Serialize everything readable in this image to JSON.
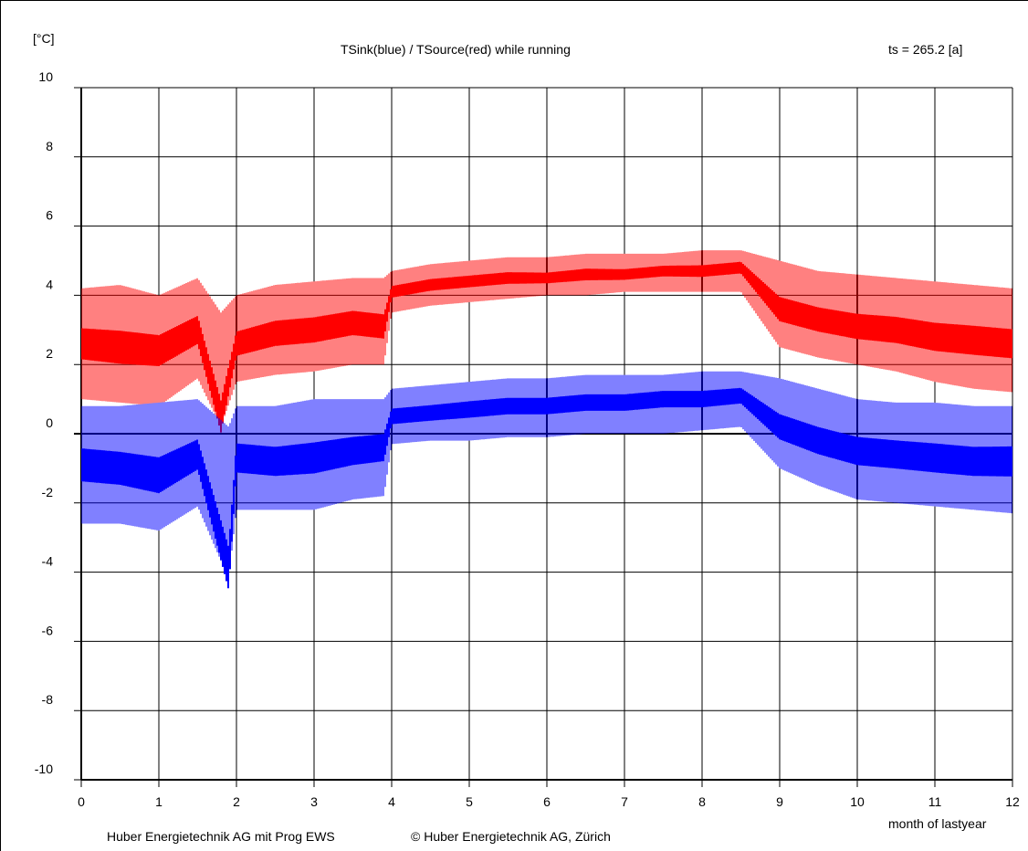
{
  "header": {
    "unit_label": "[°C]",
    "title": "TSink(blue) / TSource(red) while running",
    "ts_label": "ts = 265.2 [a]"
  },
  "footer": {
    "credit_left": "Huber Energietechnik AG mit Prog EWS",
    "credit_right": "© Huber Energietechnik AG, Zürich",
    "xlabel": "month of lastyear"
  },
  "colors": {
    "sink": "#0000ff",
    "source": "#ff0000",
    "grid": "#000000",
    "background": "#ffffff"
  },
  "chart_data": {
    "type": "line",
    "title": "TSink(blue) / TSource(red) while running",
    "xlabel": "month of lastyear",
    "ylabel": "[°C]",
    "ylim": [
      -10,
      10
    ],
    "xlim": [
      0,
      12
    ],
    "grid": true,
    "x_tick_labels": [
      "0",
      "1",
      "2",
      "3",
      "4",
      "5",
      "6",
      "7",
      "8",
      "9",
      "10",
      "11",
      "12"
    ],
    "y_ticks": [
      -10,
      -8,
      -6,
      -4,
      -2,
      0,
      2,
      4,
      6,
      8,
      10
    ],
    "y_tick_labels": [
      "-10",
      "-8",
      "-6",
      "-4",
      "-2",
      "0",
      "2",
      "4",
      "6",
      "8",
      "10"
    ],
    "series": [
      {
        "name": "TSource(red)",
        "color": "#ff0000",
        "x": [
          0.0,
          0.5,
          1.0,
          1.5,
          1.8,
          2.0,
          2.5,
          3.0,
          3.5,
          3.9,
          4.0,
          4.5,
          5.0,
          5.5,
          6.0,
          6.5,
          7.0,
          7.5,
          8.0,
          8.5,
          9.0,
          9.5,
          10.0,
          10.5,
          11.0,
          11.5,
          12.0
        ],
        "low": [
          1.0,
          0.9,
          0.8,
          1.6,
          0.2,
          1.5,
          1.7,
          1.8,
          2.0,
          2.0,
          3.5,
          3.7,
          3.8,
          3.9,
          4.0,
          4.0,
          4.1,
          4.1,
          4.1,
          4.1,
          2.5,
          2.2,
          2.0,
          1.8,
          1.5,
          1.3,
          1.2
        ],
        "high": [
          4.2,
          4.3,
          4.0,
          4.5,
          3.5,
          4.0,
          4.3,
          4.4,
          4.5,
          4.5,
          4.7,
          4.9,
          5.0,
          5.1,
          5.1,
          5.2,
          5.2,
          5.2,
          5.3,
          5.3,
          5.0,
          4.7,
          4.6,
          4.5,
          4.4,
          4.3,
          4.2
        ],
        "mid": [
          2.6,
          2.5,
          2.4,
          3.0,
          0.5,
          2.6,
          2.9,
          3.0,
          3.2,
          3.1,
          4.1,
          4.3,
          4.4,
          4.5,
          4.5,
          4.6,
          4.6,
          4.7,
          4.7,
          4.8,
          3.6,
          3.3,
          3.1,
          3.0,
          2.8,
          2.7,
          2.6
        ]
      },
      {
        "name": "TSink(blue)",
        "color": "#0000ff",
        "x": [
          0.0,
          0.5,
          1.0,
          1.5,
          1.9,
          2.0,
          2.5,
          3.0,
          3.5,
          3.9,
          4.0,
          4.5,
          5.0,
          5.5,
          6.0,
          6.5,
          7.0,
          7.5,
          8.0,
          8.5,
          9.0,
          9.5,
          10.0,
          10.5,
          11.0,
          11.5,
          12.0
        ],
        "low": [
          -2.6,
          -2.6,
          -2.8,
          -2.1,
          -4.2,
          -2.2,
          -2.2,
          -2.2,
          -1.9,
          -1.8,
          -0.3,
          -0.2,
          -0.2,
          -0.1,
          -0.1,
          0.0,
          0.0,
          0.0,
          0.1,
          0.2,
          -1.0,
          -1.5,
          -1.9,
          -2.0,
          -2.1,
          -2.2,
          -2.3
        ],
        "high": [
          0.8,
          0.8,
          0.9,
          1.0,
          0.2,
          0.8,
          0.8,
          1.0,
          1.0,
          1.0,
          1.3,
          1.4,
          1.5,
          1.6,
          1.6,
          1.7,
          1.7,
          1.7,
          1.8,
          1.8,
          1.6,
          1.3,
          1.0,
          0.9,
          0.9,
          0.8,
          0.8
        ],
        "mid": [
          -0.9,
          -1.0,
          -1.2,
          -0.6,
          -3.9,
          -0.7,
          -0.8,
          -0.7,
          -0.5,
          -0.4,
          0.5,
          0.6,
          0.7,
          0.8,
          0.8,
          0.9,
          0.9,
          1.0,
          1.0,
          1.1,
          0.2,
          -0.2,
          -0.5,
          -0.6,
          -0.7,
          -0.8,
          -0.8
        ]
      }
    ]
  }
}
